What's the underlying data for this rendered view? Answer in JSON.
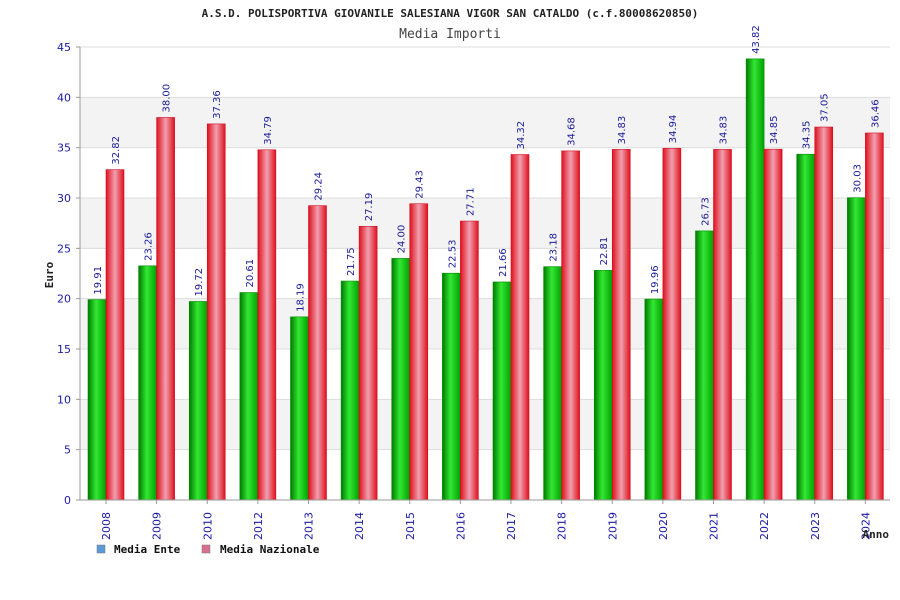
{
  "chart_data": {
    "type": "bar",
    "title": "A.S.D. POLISPORTIVA GIOVANILE SALESIANA VIGOR SAN CATALDO (c.f.80008620850)",
    "subtitle": "Media Importi",
    "xlabel": "Anno",
    "ylabel": "Euro",
    "ylim": [
      0,
      45
    ],
    "yticks": [
      "0",
      "5",
      "10",
      "15",
      "20",
      "25",
      "30",
      "35",
      "40",
      "45"
    ],
    "grid": true,
    "legend_position": "bottom-left",
    "categories": [
      "2008",
      "2009",
      "2010",
      "2012",
      "2013",
      "2014",
      "2015",
      "2016",
      "2017",
      "2018",
      "2019",
      "2020",
      "2021",
      "2022",
      "2023",
      "2024"
    ],
    "series": [
      {
        "name": "Media Ente",
        "color": "#00b400",
        "values": [
          19.91,
          23.26,
          19.72,
          20.61,
          18.19,
          21.75,
          24.0,
          22.53,
          21.66,
          23.18,
          22.81,
          19.96,
          26.73,
          43.82,
          34.35,
          30.03
        ],
        "labels": [
          "19.91",
          "23.26",
          "19.72",
          "20.61",
          "18.19",
          "21.75",
          "24.00",
          "22.53",
          "21.66",
          "23.18",
          "22.81",
          "19.96",
          "26.73",
          "43.82",
          "34.35",
          "30.03"
        ]
      },
      {
        "name": "Media Nazionale",
        "color": "#ee1c2c",
        "values": [
          32.82,
          38.0,
          37.36,
          34.79,
          29.24,
          27.19,
          29.43,
          27.71,
          34.32,
          34.68,
          34.83,
          34.94,
          34.83,
          34.85,
          37.05,
          36.46
        ],
        "labels": [
          "32.82",
          "38.00",
          "37.36",
          "34.79",
          "29.24",
          "27.19",
          "29.43",
          "27.71",
          "34.32",
          "34.68",
          "34.83",
          "34.94",
          "34.83",
          "34.85",
          "37.05",
          "36.46"
        ]
      }
    ],
    "legend_swatch_colors": [
      "#5b9bd5",
      "#d6728f"
    ]
  }
}
